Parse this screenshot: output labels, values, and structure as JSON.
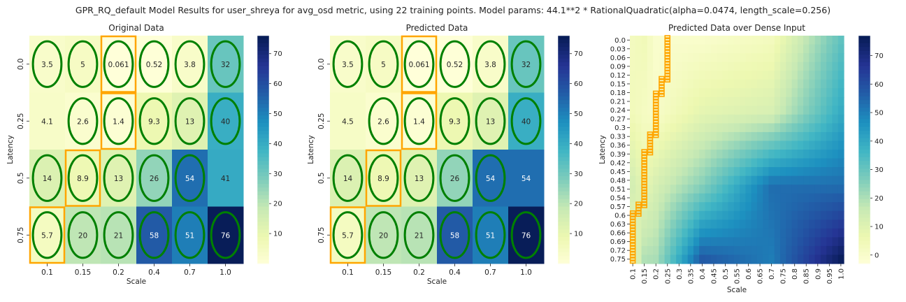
{
  "figure": {
    "title": "GPR_RQ_default Model Results for user_shreya for avg_osd metric, using 22 training points. Model params: 44.1**2 * RationalQuadratic(alpha=0.0474, length_scale=0.256)"
  },
  "colors": {
    "cmap": [
      "#ffffd9",
      "#edf8b1",
      "#c7e9b4",
      "#7fcdbb",
      "#41b6c4",
      "#1d91c0",
      "#225ea8",
      "#253494",
      "#081d58"
    ],
    "ellipse": "#008000",
    "highlight": "#ffa500"
  },
  "chart_data": [
    {
      "type": "heatmap",
      "title": "Original Data",
      "xlabel": "Scale",
      "ylabel": "Latency",
      "x": [
        "0.1",
        "0.15",
        "0.2",
        "0.4",
        "0.7",
        "1.0"
      ],
      "y": [
        "0.0",
        "0.25",
        "0.5",
        "0.75"
      ],
      "values": [
        [
          3.5,
          5,
          0.061,
          0.52,
          3.8,
          32
        ],
        [
          4.1,
          2.6,
          1.4,
          9.3,
          13,
          40
        ],
        [
          14,
          8.9,
          13,
          26,
          54,
          41
        ],
        [
          5.7,
          20,
          21,
          58,
          51,
          76
        ]
      ],
      "training_points": [
        [
          0,
          0
        ],
        [
          0,
          1
        ],
        [
          0,
          2
        ],
        [
          0,
          3
        ],
        [
          0,
          4
        ],
        [
          0,
          5
        ],
        [
          1,
          1
        ],
        [
          1,
          2
        ],
        [
          1,
          3
        ],
        [
          1,
          4
        ],
        [
          1,
          5
        ],
        [
          2,
          0
        ],
        [
          2,
          1
        ],
        [
          2,
          2
        ],
        [
          2,
          3
        ],
        [
          2,
          4
        ],
        [
          3,
          0
        ],
        [
          3,
          1
        ],
        [
          3,
          2
        ],
        [
          3,
          3
        ],
        [
          3,
          4
        ],
        [
          3,
          5
        ]
      ],
      "highlight_cells": [
        [
          0,
          2
        ],
        [
          1,
          2
        ],
        [
          2,
          1
        ],
        [
          3,
          0
        ]
      ],
      "colorbar": {
        "min": 0,
        "max": 76,
        "ticks": [
          10,
          20,
          30,
          40,
          50,
          60,
          70
        ]
      }
    },
    {
      "type": "heatmap",
      "title": "Predicted Data",
      "xlabel": "Scale",
      "ylabel": "Latency",
      "x": [
        "0.1",
        "0.15",
        "0.2",
        "0.4",
        "0.7",
        "1.0"
      ],
      "y": [
        "0.0",
        "0.25",
        "0.5",
        "0.75"
      ],
      "values": [
        [
          3.5,
          5,
          0.061,
          0.52,
          3.8,
          32
        ],
        [
          4.5,
          2.6,
          1.4,
          9.3,
          13,
          40
        ],
        [
          14,
          8.9,
          13,
          26,
          54,
          54
        ],
        [
          5.7,
          20,
          21,
          58,
          51,
          76
        ]
      ],
      "training_points": [
        [
          0,
          0
        ],
        [
          0,
          1
        ],
        [
          0,
          2
        ],
        [
          0,
          3
        ],
        [
          0,
          4
        ],
        [
          0,
          5
        ],
        [
          1,
          1
        ],
        [
          1,
          2
        ],
        [
          1,
          3
        ],
        [
          1,
          4
        ],
        [
          1,
          5
        ],
        [
          2,
          0
        ],
        [
          2,
          1
        ],
        [
          2,
          2
        ],
        [
          2,
          3
        ],
        [
          2,
          4
        ],
        [
          3,
          0
        ],
        [
          3,
          1
        ],
        [
          3,
          2
        ],
        [
          3,
          3
        ],
        [
          3,
          4
        ],
        [
          3,
          5
        ]
      ],
      "highlight_cells": [
        [
          0,
          2
        ],
        [
          1,
          2
        ],
        [
          2,
          1
        ],
        [
          3,
          0
        ]
      ],
      "colorbar": {
        "min": 0,
        "max": 76,
        "ticks": [
          10,
          20,
          30,
          40,
          50,
          60,
          70
        ]
      }
    },
    {
      "type": "heatmap",
      "title": "Predicted Data over Dense Input",
      "xlabel": "Scale",
      "ylabel": "Latency",
      "x": [
        "0.1",
        "0.15",
        "0.2",
        "0.25",
        "0.3",
        "0.35",
        "0.4",
        "0.45",
        "0.5",
        "0.55",
        "0.6",
        "0.65",
        "0.7",
        "0.75",
        "0.8",
        "0.85",
        "0.9",
        "0.95",
        "1.0"
      ],
      "y": [
        "0.0",
        "0.03",
        "0.06",
        "0.09",
        "0.12",
        "0.15",
        "0.18",
        "0.21",
        "0.24",
        "0.27",
        "0.3",
        "0.33",
        "0.36",
        "0.39",
        "0.42",
        "0.45",
        "0.48",
        "0.51",
        "0.54",
        "0.57",
        "0.6",
        "0.63",
        "0.66",
        "0.69",
        "0.72",
        "0.75"
      ],
      "y_range": [
        0,
        0.75
      ],
      "x_range": [
        0.1,
        1.0
      ],
      "dense_anchor": {
        "x": [
          0.1,
          0.15,
          0.2,
          0.4,
          0.7,
          1.0
        ],
        "y": [
          0.0,
          0.25,
          0.5,
          0.75
        ],
        "values": [
          [
            3.5,
            5,
            0.061,
            0.52,
            3.8,
            32
          ],
          [
            4.5,
            2.6,
            1.4,
            9.3,
            13,
            40
          ],
          [
            14,
            8.9,
            13,
            26,
            54,
            54
          ],
          [
            5.7,
            20,
            21,
            58,
            51,
            76
          ]
        ]
      },
      "highlight_path": [
        {
          "x": 0.25,
          "y_from": 0.0,
          "y_to": 0.14
        },
        {
          "x": 0.225,
          "y_from": 0.14,
          "y_to": 0.19
        },
        {
          "x": 0.2,
          "y_from": 0.19,
          "y_to": 0.33
        },
        {
          "x": 0.175,
          "y_from": 0.33,
          "y_to": 0.39
        },
        {
          "x": 0.15,
          "y_from": 0.39,
          "y_to": 0.57
        },
        {
          "x": 0.125,
          "y_from": 0.57,
          "y_to": 0.6
        },
        {
          "x": 0.1,
          "y_from": 0.6,
          "y_to": 0.75
        }
      ],
      "colorbar": {
        "min": -3,
        "max": 77,
        "ticks": [
          0,
          10,
          20,
          30,
          40,
          50,
          60,
          70
        ]
      }
    }
  ]
}
